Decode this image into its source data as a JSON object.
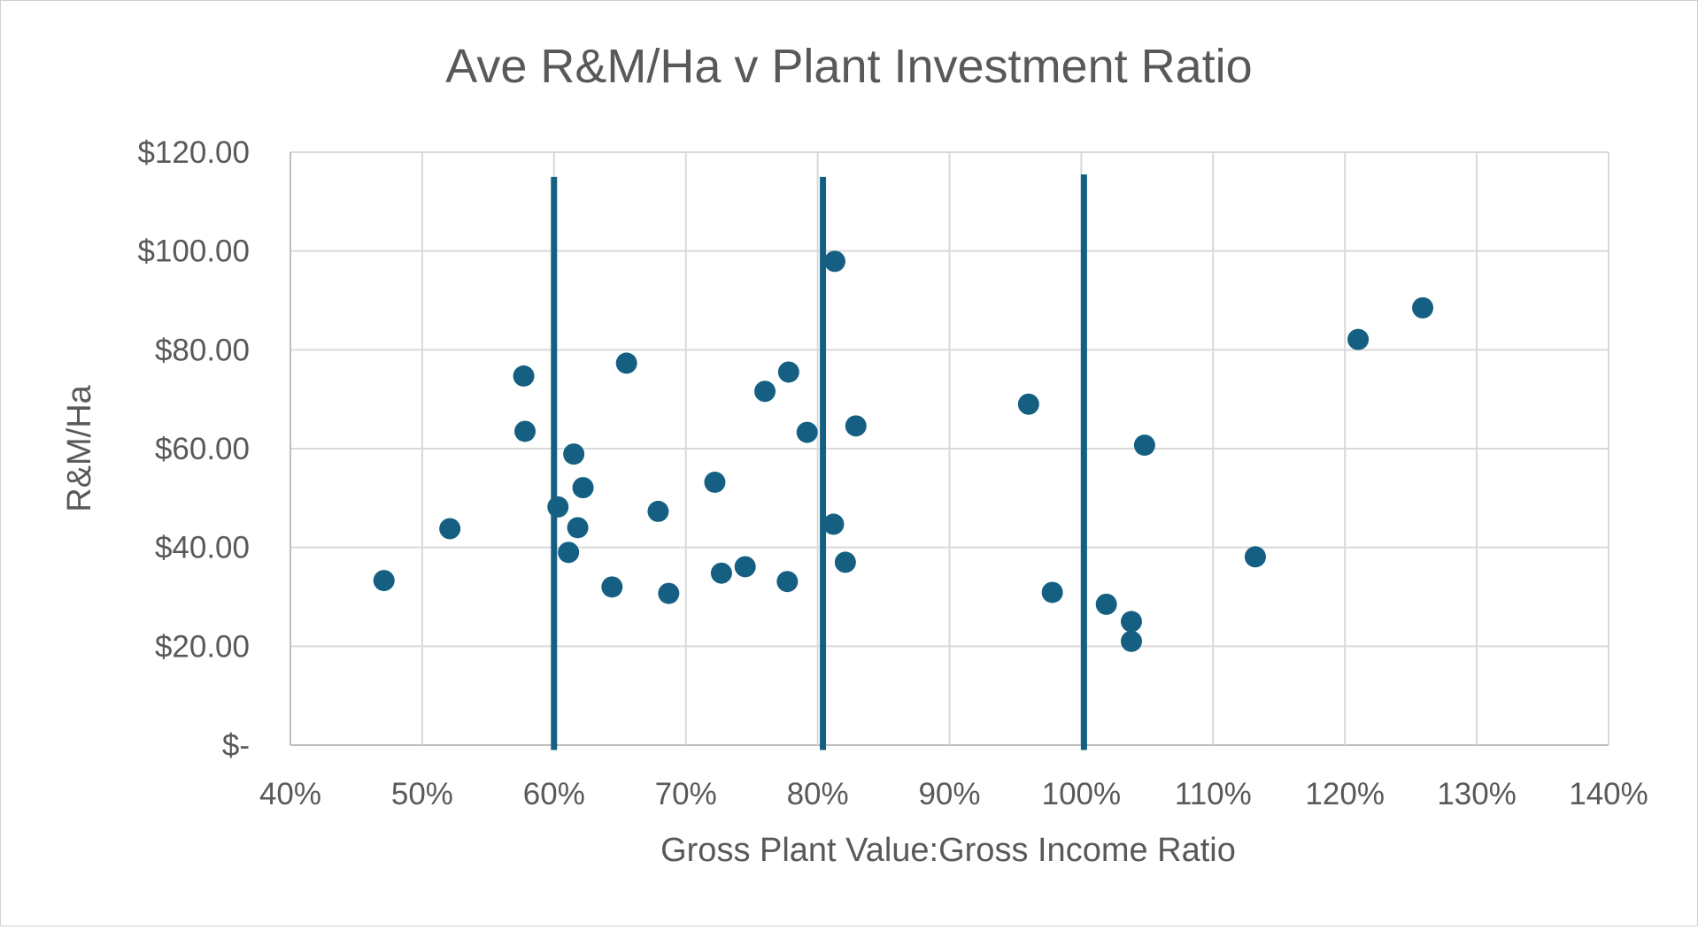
{
  "chart_data": {
    "type": "scatter",
    "title": "Ave R&M/Ha v Plant Investment Ratio",
    "xlabel": "Gross Plant Value:Gross Income Ratio",
    "ylabel": "R&M/Ha",
    "xlim": [
      40,
      140
    ],
    "ylim": [
      0,
      120
    ],
    "x_ticks": [
      40,
      50,
      60,
      70,
      80,
      90,
      100,
      110,
      120,
      130,
      140
    ],
    "x_tick_labels": [
      "40%",
      "50%",
      "60%",
      "70%",
      "80%",
      "90%",
      "100%",
      "110%",
      "120%",
      "130%",
      "140%"
    ],
    "y_ticks": [
      0,
      20,
      40,
      60,
      80,
      100,
      120
    ],
    "y_tick_labels": [
      "$-",
      "$20.00",
      "$40.00",
      "$60.00",
      "$80.00",
      "$100.00",
      "$120.00"
    ],
    "grid": true,
    "legend": "none",
    "colors": {
      "points": "#156082",
      "lines": "#156082",
      "grid": "#d9d9d9",
      "text": "#595959"
    },
    "points": [
      [
        47.1,
        33.3
      ],
      [
        52.1,
        43.8
      ],
      [
        57.7,
        74.7
      ],
      [
        57.8,
        63.5
      ],
      [
        60.3,
        48.2
      ],
      [
        61.5,
        58.9
      ],
      [
        62.2,
        52.1
      ],
      [
        61.8,
        44.0
      ],
      [
        61.1,
        39.0
      ],
      [
        64.4,
        32.0
      ],
      [
        65.5,
        77.3
      ],
      [
        67.9,
        47.3
      ],
      [
        68.7,
        30.7
      ],
      [
        72.2,
        53.2
      ],
      [
        72.7,
        34.8
      ],
      [
        74.5,
        36.1
      ],
      [
        76.0,
        71.6
      ],
      [
        77.8,
        75.5
      ],
      [
        77.7,
        33.1
      ],
      [
        79.2,
        63.3
      ],
      [
        81.3,
        97.9
      ],
      [
        81.2,
        44.7
      ],
      [
        82.9,
        64.6
      ],
      [
        82.1,
        37.0
      ],
      [
        96.0,
        69.0
      ],
      [
        97.8,
        30.9
      ],
      [
        101.9,
        28.5
      ],
      [
        103.8,
        25.0
      ],
      [
        103.8,
        21.0
      ],
      [
        104.8,
        60.7
      ],
      [
        113.2,
        38.1
      ],
      [
        121.0,
        82.1
      ],
      [
        125.9,
        88.5
      ]
    ],
    "reference_lines": [
      {
        "x": 60,
        "y": [
          -1,
          115
        ]
      },
      {
        "x": 80.4,
        "y": [
          -1,
          115
        ]
      },
      {
        "x": 100.2,
        "y": [
          -1,
          115.5
        ]
      }
    ]
  }
}
